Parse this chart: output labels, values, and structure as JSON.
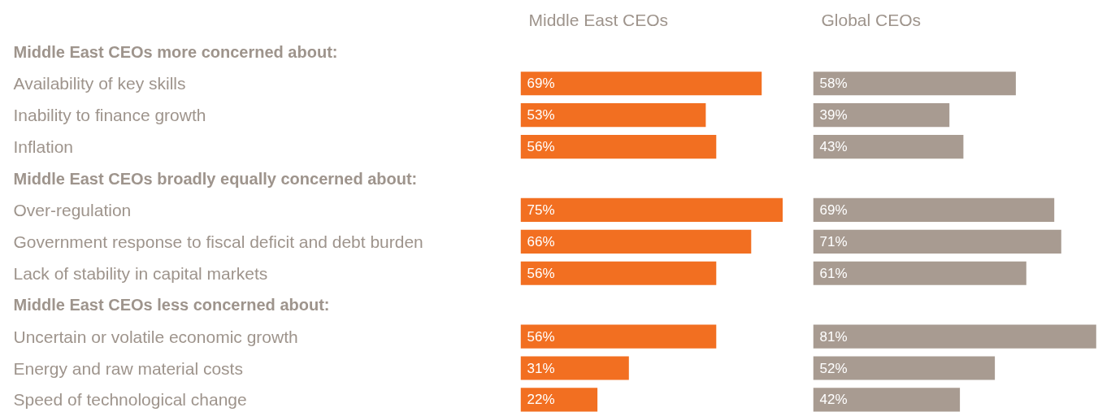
{
  "chart_data": [
    {
      "type": "bar",
      "orientation": "horizontal",
      "title": "Middle East CEOs",
      "tick_labels": "y",
      "color": "#f26f21",
      "categories": [
        null,
        "Availability of key skills",
        "Inability to finance growth",
        "Inflation",
        null,
        "Over-regulation",
        "Government response to fiscal deficit and debt burden",
        "Lack of stability in capital markets",
        null,
        "Uncertain or volatile economic growth",
        "Energy and raw material costs",
        "Speed of technological change"
      ],
      "annotations": [
        "Middle East CEOs more concerned about:",
        "Middle East CEOs broadly equally concerned about:",
        "Middle East CEOs less concerned about:"
      ],
      "values": [
        null,
        69,
        53,
        56,
        null,
        75,
        66,
        56,
        null,
        56,
        31,
        22
      ],
      "value_labels": [
        null,
        "69%",
        "53%",
        "56%",
        null,
        "75%",
        "66%",
        "56%",
        null,
        "56%",
        "31%",
        "22%"
      ]
    },
    {
      "type": "bar",
      "orientation": "horizontal",
      "title": "Global CEOs",
      "tick_labels": false,
      "color": "#a89b91",
      "values": [
        null,
        58,
        39,
        43,
        null,
        69,
        71,
        61,
        null,
        81,
        52,
        42
      ],
      "value_labels": [
        null,
        "58%",
        "39%",
        "43%",
        null,
        "69%",
        "71%",
        "61%",
        null,
        "81%",
        "52%",
        "42%"
      ]
    }
  ]
}
